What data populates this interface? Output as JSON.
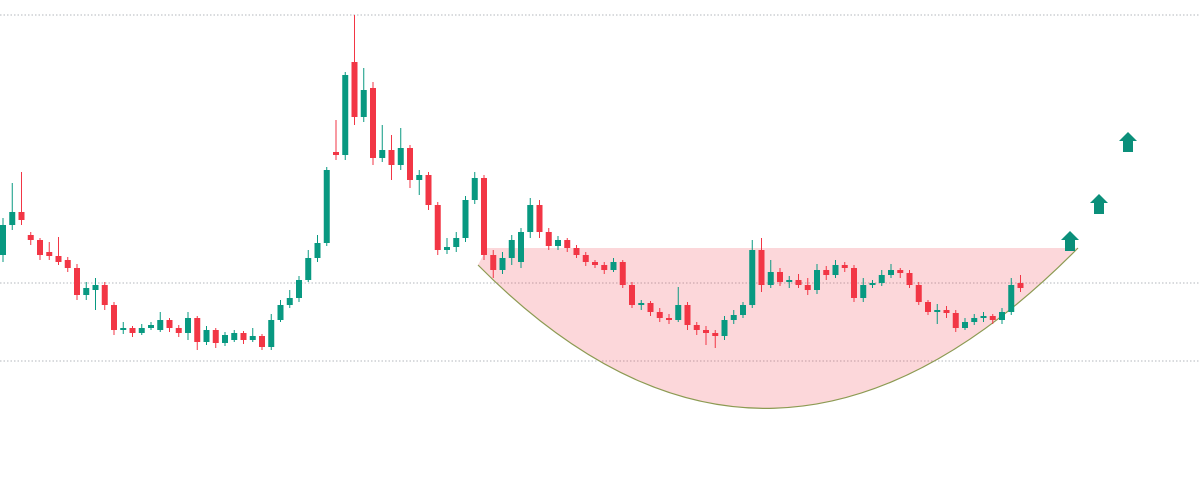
{
  "chart_data": {
    "type": "candlestick",
    "up_color": "#089981",
    "down_color": "#f23645",
    "ylim": [
      9,
      500
    ],
    "hlines": [
      485,
      217,
      139
    ],
    "open": [
      245,
      275,
      288,
      265,
      260,
      248,
      244,
      240,
      232,
      205,
      210,
      215,
      195,
      170,
      172,
      167,
      172,
      170,
      180,
      172,
      167,
      182,
      158,
      170,
      157,
      160,
      167,
      160,
      164,
      153,
      180,
      195,
      202,
      220,
      242,
      257,
      348,
      345,
      438,
      383,
      412,
      342,
      350,
      335,
      352,
      320,
      325,
      295,
      250,
      253,
      262,
      300,
      322,
      245,
      230,
      242,
      238,
      268,
      295,
      268,
      254,
      260,
      252,
      245,
      238,
      235,
      230,
      238,
      215,
      195,
      197,
      188,
      182,
      180,
      195,
      175,
      170,
      167,
      164,
      180,
      185,
      195,
      250,
      215,
      228,
      218,
      220,
      215,
      210,
      230,
      225,
      235,
      232,
      202,
      215,
      217,
      225,
      230,
      227,
      215,
      198,
      188,
      190,
      187,
      172,
      178,
      182,
      184,
      180,
      188,
      217
    ],
    "high": [
      282,
      317,
      328,
      268,
      262,
      258,
      263,
      243,
      236,
      218,
      222,
      218,
      198,
      178,
      174,
      176,
      178,
      188,
      182,
      175,
      188,
      184,
      174,
      172,
      168,
      170,
      169,
      172,
      166,
      186,
      200,
      210,
      224,
      250,
      265,
      333,
      380,
      428,
      485,
      432,
      418,
      375,
      365,
      372,
      355,
      330,
      328,
      298,
      262,
      268,
      304,
      328,
      325,
      250,
      248,
      265,
      272,
      302,
      300,
      272,
      264,
      262,
      255,
      248,
      240,
      238,
      242,
      240,
      218,
      200,
      199,
      192,
      186,
      213,
      198,
      178,
      174,
      170,
      184,
      190,
      198,
      260,
      262,
      240,
      232,
      224,
      226,
      222,
      236,
      234,
      240,
      238,
      235,
      222,
      220,
      230,
      236,
      232,
      230,
      218,
      200,
      196,
      194,
      190,
      182,
      186,
      188,
      186,
      192,
      222,
      225
    ],
    "low": [
      238,
      270,
      275,
      255,
      240,
      240,
      235,
      228,
      200,
      200,
      190,
      190,
      165,
      166,
      163,
      165,
      170,
      168,
      168,
      163,
      160,
      150,
      155,
      152,
      154,
      158,
      156,
      158,
      150,
      150,
      178,
      192,
      198,
      218,
      238,
      254,
      340,
      340,
      375,
      378,
      335,
      338,
      320,
      330,
      312,
      305,
      290,
      245,
      246,
      248,
      258,
      296,
      240,
      222,
      226,
      235,
      232,
      262,
      262,
      250,
      250,
      248,
      242,
      234,
      232,
      226,
      228,
      212,
      192,
      190,
      184,
      178,
      176,
      178,
      170,
      165,
      155,
      152,
      160,
      176,
      182,
      192,
      208,
      212,
      214,
      212,
      212,
      205,
      206,
      220,
      222,
      228,
      198,
      198,
      212,
      214,
      222,
      222,
      212,
      195,
      185,
      176,
      182,
      168,
      170,
      175,
      178,
      176,
      176,
      185,
      208
    ],
    "close": [
      275,
      288,
      280,
      260,
      245,
      244,
      238,
      232,
      205,
      212,
      215,
      195,
      170,
      172,
      167,
      172,
      175,
      180,
      172,
      167,
      182,
      158,
      170,
      157,
      165,
      167,
      160,
      164,
      153,
      180,
      195,
      202,
      220,
      242,
      257,
      330,
      345,
      425,
      383,
      410,
      342,
      350,
      335,
      352,
      320,
      325,
      295,
      250,
      253,
      262,
      300,
      322,
      245,
      230,
      242,
      260,
      268,
      295,
      268,
      254,
      260,
      252,
      245,
      238,
      235,
      230,
      238,
      215,
      195,
      197,
      188,
      182,
      180,
      195,
      175,
      170,
      167,
      164,
      180,
      185,
      195,
      250,
      215,
      228,
      218,
      220,
      215,
      210,
      230,
      225,
      235,
      232,
      202,
      215,
      217,
      225,
      230,
      227,
      215,
      198,
      188,
      190,
      187,
      172,
      178,
      182,
      184,
      180,
      188,
      215,
      212
    ]
  }
}
